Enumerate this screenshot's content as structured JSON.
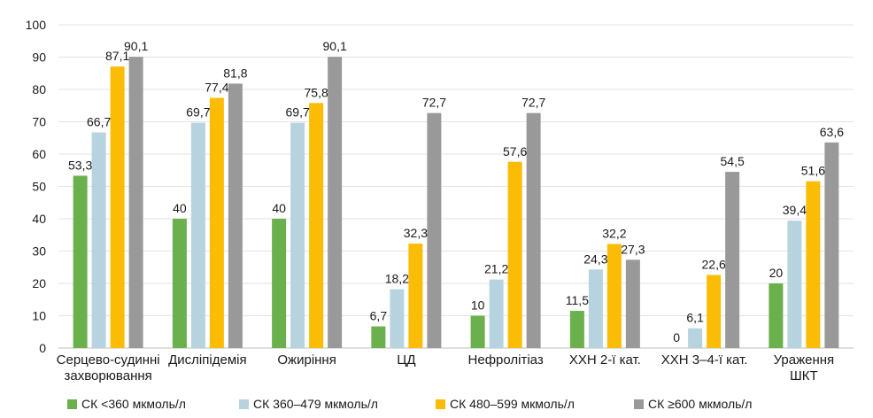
{
  "chart_data": {
    "type": "bar",
    "categories": [
      [
        "Серцево-судинні",
        "захворювання"
      ],
      [
        "Дисліпідемія"
      ],
      [
        "Ожиріння"
      ],
      [
        "ЦД"
      ],
      [
        "Нефролітіаз"
      ],
      [
        "ХХН 2-ї кат."
      ],
      [
        "ХХН 3–4-ї кат."
      ],
      [
        "Ураження",
        "ШКТ"
      ]
    ],
    "series": [
      {
        "name": "СК <360 мкмоль/л",
        "color": "#6ab04c",
        "values": [
          53.3,
          40,
          40,
          6.7,
          10,
          11.5,
          0,
          20
        ],
        "labels": [
          "53,3",
          "40",
          "40",
          "6,7",
          "10",
          "11,5",
          "0",
          "20"
        ]
      },
      {
        "name": "СК 360–479 мкмоль/л",
        "color": "#b8d3e0",
        "values": [
          66.7,
          69.7,
          69.7,
          18.2,
          21.2,
          24.3,
          6.1,
          39.4
        ],
        "labels": [
          "66,7",
          "69,7",
          "69,7",
          "18,2",
          "21,2",
          "24,3",
          "6,1",
          "39,4"
        ]
      },
      {
        "name": "СК 480–599 мкмоль/л",
        "color": "#fbbc05",
        "values": [
          87.1,
          77.4,
          75.8,
          32.3,
          57.6,
          32.2,
          22.6,
          51.6
        ],
        "labels": [
          "87,1",
          "77,4",
          "75,8",
          "32,3",
          "57,6",
          "32,2",
          "22,6",
          "51,6"
        ]
      },
      {
        "name": "СК ≥600 мкмоль/л",
        "color": "#999999",
        "values": [
          90.1,
          81.8,
          90.1,
          72.7,
          72.7,
          27.3,
          54.5,
          63.6
        ],
        "labels": [
          "90,1",
          "81,8",
          "90,1",
          "72,7",
          "72,7",
          "27,3",
          "54,5",
          "63,6"
        ]
      }
    ],
    "y_ticks": [
      "0",
      "10",
      "20",
      "30",
      "40",
      "50",
      "60",
      "70",
      "80",
      "90",
      "100"
    ],
    "ylim": [
      0,
      100
    ],
    "grid": true,
    "legend_position": "bottom"
  }
}
